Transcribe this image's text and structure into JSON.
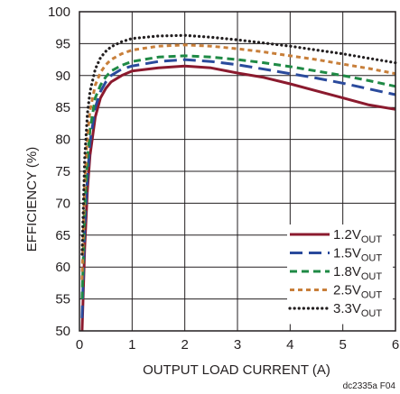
{
  "chart_data": {
    "type": "line",
    "xlabel": "OUTPUT LOAD CURRENT (A)",
    "ylabel": "EFFICIENCY (%)",
    "xlim": [
      0,
      6
    ],
    "ylim": [
      50,
      100
    ],
    "xticks": [
      "0",
      "1",
      "2",
      "3",
      "4",
      "5",
      "6"
    ],
    "yticks": [
      "50",
      "55",
      "60",
      "65",
      "70",
      "75",
      "80",
      "85",
      "90",
      "95",
      "100"
    ],
    "grid": true,
    "legend_position": "bottom-right",
    "figure_code": "dc2335a F04",
    "series": [
      {
        "name": "1.2V",
        "name_sub": "OUT",
        "color": "#8b1a2e",
        "dash": "solid",
        "x": [
          0.05,
          0.1,
          0.15,
          0.2,
          0.3,
          0.4,
          0.5,
          0.6,
          0.8,
          1.0,
          1.5,
          2.0,
          2.5,
          3.0,
          3.5,
          4.0,
          4.5,
          5.0,
          5.5,
          6.0
        ],
        "y": [
          50,
          63,
          72,
          77.5,
          83.5,
          86.5,
          88,
          89,
          90,
          90.7,
          91.2,
          91.5,
          91.2,
          90.4,
          89.7,
          88.7,
          87.6,
          86.5,
          85.4,
          84.7
        ]
      },
      {
        "name": "1.5V",
        "name_sub": "OUT",
        "color": "#2a4a9c",
        "dash": "long-dash",
        "x": [
          0.05,
          0.1,
          0.15,
          0.2,
          0.3,
          0.4,
          0.5,
          0.6,
          0.8,
          1.0,
          1.5,
          2.0,
          2.5,
          3.0,
          3.5,
          4.0,
          4.5,
          5.0,
          5.5,
          6.0
        ],
        "y": [
          52,
          66,
          74,
          79.5,
          85,
          87.5,
          89,
          90,
          91,
          91.5,
          92.2,
          92.5,
          92.2,
          91.7,
          91,
          90.3,
          89.6,
          88.8,
          87.9,
          87
        ]
      },
      {
        "name": "1.8V",
        "name_sub": "OUT",
        "color": "#1f8a45",
        "dash": "dash",
        "x": [
          0.05,
          0.1,
          0.15,
          0.2,
          0.3,
          0.4,
          0.5,
          0.6,
          0.8,
          1.0,
          1.5,
          2.0,
          2.5,
          3.0,
          3.5,
          4.0,
          4.5,
          5.0,
          5.5,
          6.0
        ],
        "y": [
          55,
          69,
          77,
          81.5,
          86.5,
          88.5,
          89.8,
          90.7,
          91.6,
          92.2,
          92.9,
          93.1,
          92.9,
          92.5,
          92,
          91.4,
          90.7,
          90,
          89.2,
          88.3
        ]
      },
      {
        "name": "2.5V",
        "name_sub": "OUT",
        "color": "#c87f3a",
        "dash": "short-dash",
        "x": [
          0.05,
          0.1,
          0.15,
          0.2,
          0.3,
          0.4,
          0.5,
          0.6,
          0.8,
          1.0,
          1.5,
          2.0,
          2.5,
          3.0,
          3.5,
          4.0,
          4.5,
          5.0,
          5.5,
          6.0
        ],
        "y": [
          58,
          73,
          80.5,
          84.5,
          88.5,
          90.5,
          91.7,
          92.5,
          93.4,
          94,
          94.6,
          94.8,
          94.6,
          94.2,
          93.7,
          93.1,
          92.5,
          91.8,
          91.1,
          90.3
        ]
      },
      {
        "name": "3.3V",
        "name_sub": "OUT",
        "color": "#231f20",
        "dash": "dot",
        "x": [
          0.05,
          0.1,
          0.15,
          0.2,
          0.3,
          0.4,
          0.5,
          0.6,
          0.8,
          1.0,
          1.5,
          2.0,
          2.5,
          3.0,
          3.5,
          4.0,
          4.5,
          5.0,
          5.5,
          6.0
        ],
        "y": [
          62,
          77,
          84,
          87.5,
          91,
          92.8,
          93.8,
          94.5,
          95.3,
          95.8,
          96.2,
          96.3,
          96,
          95.6,
          95.1,
          94.6,
          94,
          93.4,
          92.7,
          92
        ]
      }
    ]
  }
}
